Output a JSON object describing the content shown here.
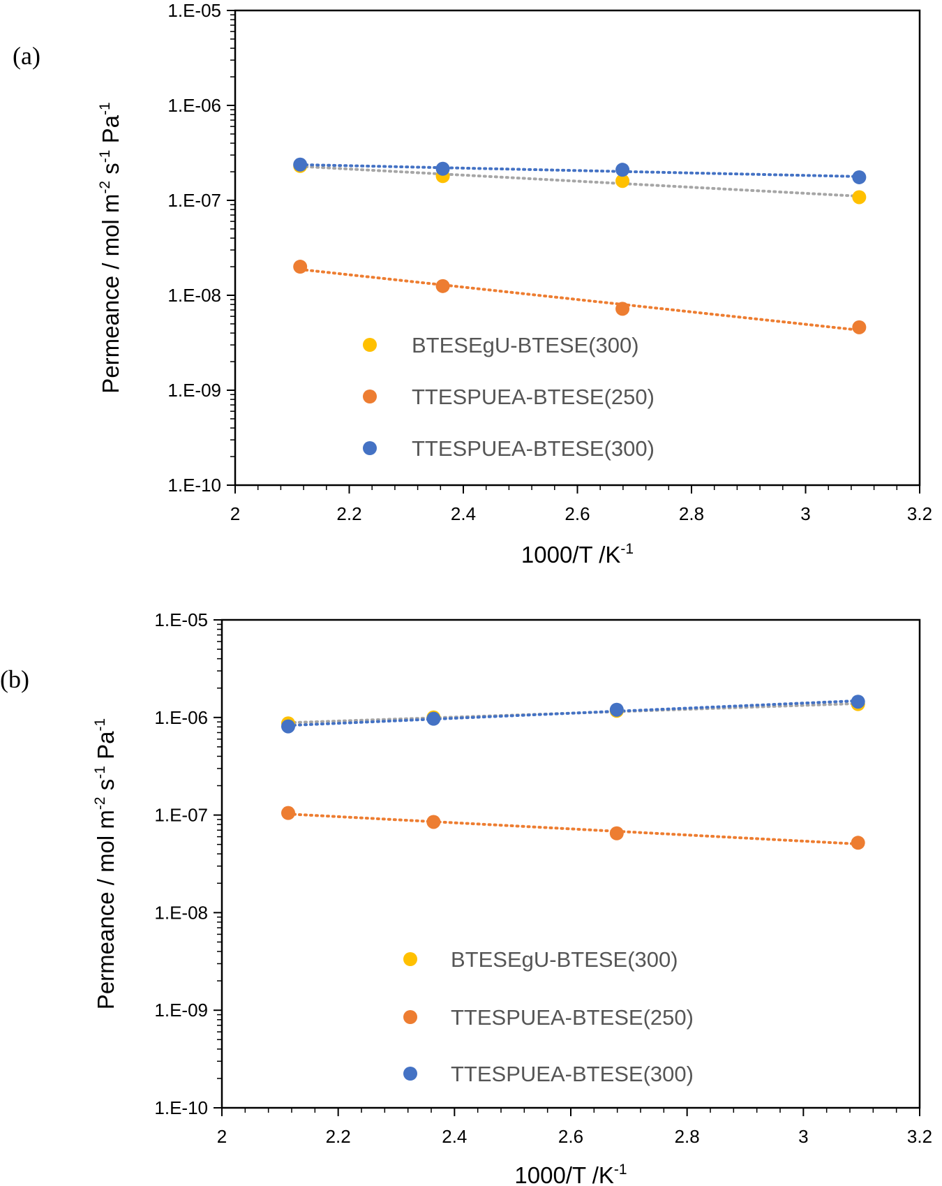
{
  "chart_data": [
    {
      "type": "scatter",
      "panel_label": "(a)",
      "title": "",
      "xlabel": {
        "base": "1000/T /K",
        "sup": "-1"
      },
      "ylabel": {
        "parts": [
          {
            "t": "Permeance / mol m"
          },
          {
            "t": "-2",
            "sup": true
          },
          {
            "t": " s"
          },
          {
            "t": "-1",
            "sup": true
          },
          {
            "t": " Pa"
          },
          {
            "t": "-1",
            "sup": true
          }
        ]
      },
      "xlim": [
        2,
        3.2
      ],
      "ylim": [
        1e-10,
        1e-05
      ],
      "yscale": "log",
      "x_ticks": [
        "2",
        "2.2",
        "2.4",
        "2.6",
        "2.8",
        "3",
        "3.2"
      ],
      "y_ticks": [
        "1.E-10",
        "1.E-09",
        "1.E-08",
        "1.E-07",
        "1.E-06",
        "1.E-05"
      ],
      "grid": false,
      "legend_position": "lower-center",
      "series": [
        {
          "name": "BTESEgU-BTESE(300)",
          "color": "#FFC000",
          "trend_color": "#A6A6A6",
          "x": [
            2.114,
            2.364,
            2.679,
            3.094
          ],
          "y": [
            2.3e-07,
            1.8e-07,
            1.6e-07,
            1.08e-07
          ]
        },
        {
          "name": "TTESPUEA-BTESE(250)",
          "color": "#ED7D31",
          "trend_color": "#ED7D31",
          "x": [
            2.114,
            2.364,
            2.679,
            3.094
          ],
          "y": [
            2e-08,
            1.25e-08,
            7.2e-09,
            4.6e-09
          ]
        },
        {
          "name": "TTESPUEA-BTESE(300)",
          "color": "#4472C4",
          "trend_color": "#4472C4",
          "x": [
            2.114,
            2.364,
            2.679,
            3.094
          ],
          "y": [
            2.38e-07,
            2.15e-07,
            2.1e-07,
            1.75e-07
          ]
        }
      ]
    },
    {
      "type": "scatter",
      "panel_label": "(b)",
      "title": "",
      "xlabel": {
        "base": "1000/T /K",
        "sup": "-1"
      },
      "ylabel": {
        "parts": [
          {
            "t": "Permeance / mol m"
          },
          {
            "t": "-2",
            "sup": true
          },
          {
            "t": " s"
          },
          {
            "t": "-1",
            "sup": true
          },
          {
            "t": " Pa"
          },
          {
            "t": "-1",
            "sup": true
          }
        ]
      },
      "xlim": [
        2,
        3.2
      ],
      "ylim": [
        1e-10,
        1e-05
      ],
      "yscale": "log",
      "x_ticks": [
        "2",
        "2.2",
        "2.4",
        "2.6",
        "2.8",
        "3",
        "3.2"
      ],
      "y_ticks": [
        "1.E-10",
        "1.E-09",
        "1.E-08",
        "1.E-07",
        "1.E-06",
        "1.E-05"
      ],
      "grid": false,
      "legend_position": "lower-center",
      "series": [
        {
          "name": "BTESEgU-BTESE(300)",
          "color": "#FFC000",
          "trend_color": "#A6A6A6",
          "x": [
            2.114,
            2.364,
            2.679,
            3.094
          ],
          "y": [
            8.7e-07,
            1e-06,
            1.17e-06,
            1.37e-06
          ]
        },
        {
          "name": "TTESPUEA-BTESE(250)",
          "color": "#ED7D31",
          "trend_color": "#ED7D31",
          "x": [
            2.114,
            2.364,
            2.679,
            3.094
          ],
          "y": [
            1.05e-07,
            8.5e-08,
            6.5e-08,
            5.2e-08
          ]
        },
        {
          "name": "TTESPUEA-BTESE(300)",
          "color": "#4472C4",
          "trend_color": "#4472C4",
          "x": [
            2.114,
            2.364,
            2.679,
            3.094
          ],
          "y": [
            8.1e-07,
            9.7e-07,
            1.2e-06,
            1.45e-06
          ]
        }
      ]
    }
  ]
}
